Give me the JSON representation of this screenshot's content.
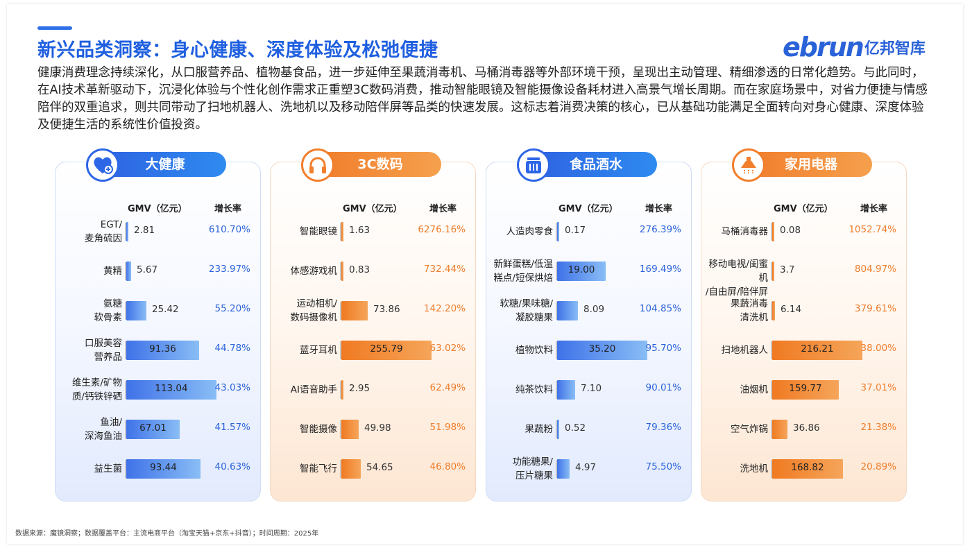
{
  "header": {
    "title": "新兴品类洞察：身心健康、深度体验及松弛便捷",
    "logo_en": "ebrun",
    "logo_cn": "亿邦智库",
    "intro": "健康消费理念持续深化，从口服营养品、植物基食品，进一步延伸至果蔬消毒机、马桶消毒器等外部环境干预，呈现出主动管理、精细渗透的日常化趋势。与此同时，在AI技术革新驱动下，沉浸化体验与个性化创作需求正重塑3C数码消费，推动智能眼镜及智能摄像设备耗材进入高景气增长周期。而在家庭场景中，对省力便捷与情感陪伴的双重追求，则共同带动了扫地机器人、洗地机以及移动陪伴屏等品类的快速发展。这标志着消费决策的核心，已从基础功能满足全面转向对身心健康、深度体验及便捷生活的系统性价值投资。"
  },
  "footnote": "数据来源：魔镜洞察；数据覆盖平台：主流电商平台（淘宝天猫+京东+抖音）；时间周期：2025年",
  "colors": {
    "blue": "#2d66e6",
    "orange": "#f27f2c"
  },
  "chart_data": [
    {
      "type": "bar",
      "title": "大健康",
      "icon": "heart-plus-icon",
      "theme": "blue",
      "value_header": "GMV（亿元）",
      "rate_header": "增长率",
      "categories": [
        "EGT/\n麦角硫因",
        "黄精",
        "氨糖\n软骨素",
        "口服美容\n营养品",
        "维生素/矿物\n质/钙铁锌硒",
        "鱼油/\n深海鱼油",
        "益生菌"
      ],
      "values": [
        "2.81",
        "5.67",
        "25.42",
        "91.36",
        "113.04",
        "67.01",
        "93.44"
      ],
      "growth": [
        "610.70%",
        "233.97%",
        "55.20%",
        "44.78%",
        "43.03%",
        "41.57%",
        "40.63%"
      ]
    },
    {
      "type": "bar",
      "title": "3C数码",
      "icon": "headphones-icon",
      "theme": "orange",
      "value_header": "GMV（亿元）",
      "rate_header": "增长率",
      "categories": [
        "智能眼镜",
        "体感游戏机",
        "运动相机/\n数码摄像机",
        "蓝牙耳机",
        "AI语音助手",
        "智能摄像",
        "智能飞行"
      ],
      "values": [
        "1.63",
        "0.83",
        "73.86",
        "255.79",
        "2.95",
        "49.98",
        "54.65"
      ],
      "growth": [
        "6276.16%",
        "732.44%",
        "142.20%",
        "63.02%",
        "62.49%",
        "51.98%",
        "46.80%"
      ]
    },
    {
      "type": "bar",
      "title": "食品酒水",
      "icon": "food-jar-icon",
      "theme": "blue",
      "value_header": "GMV（亿元）",
      "rate_header": "增长率",
      "categories": [
        "人造肉零食",
        "新鲜蛋糕/低温\n糕点/短保烘焙",
        "软糖/果味糖/\n凝胶糖果",
        "植物饮料",
        "纯茶饮料",
        "果蔬粉",
        "功能糖果/\n压片糖果"
      ],
      "values": [
        "0.17",
        "19.00",
        "8.09",
        "35.20",
        "7.10",
        "0.52",
        "4.97"
      ],
      "growth": [
        "276.39%",
        "169.49%",
        "104.85%",
        "95.70%",
        "90.01%",
        "79.36%",
        "75.50%"
      ]
    },
    {
      "type": "bar",
      "title": "家用电器",
      "icon": "range-hood-icon",
      "theme": "orange",
      "value_header": "GMV（亿元）",
      "rate_header": "增长率",
      "categories": [
        "马桶消毒器",
        "移动电视/闺蜜机\n/自由屏/陪伴屏",
        "果蔬消毒\n清洗机",
        "扫地机器人",
        "油烟机",
        "空气炸锅",
        "洗地机"
      ],
      "values": [
        "0.08",
        "3.7",
        "6.14",
        "216.21",
        "159.77",
        "36.86",
        "168.82"
      ],
      "growth": [
        "1052.74%",
        "804.97%",
        "379.61%",
        "38.00%",
        "37.01%",
        "21.38%",
        "20.89%"
      ]
    }
  ]
}
